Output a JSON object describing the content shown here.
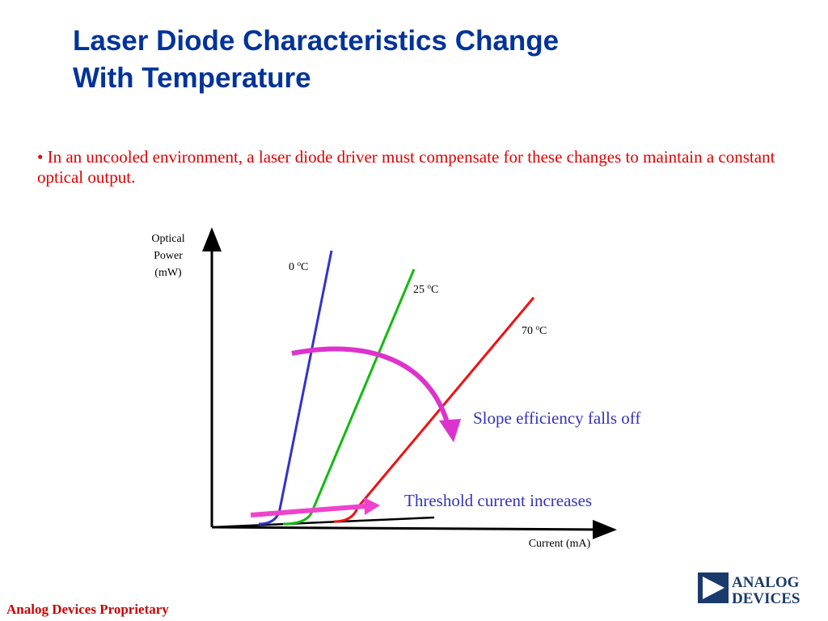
{
  "header": {
    "title": [
      "Laser Diode Characteristics Change",
      "With Temperature"
    ]
  },
  "bullet": "In an uncooled environment, a laser diode driver must compensate for these changes to maintain a constant optical output.",
  "diagram": {
    "y_axis_label": [
      "Optical",
      "Power",
      "(mW)"
    ],
    "x_axis_label": "Current (mA)",
    "curves": [
      {
        "number": "0",
        "superscript": "o",
        "unit": "C"
      },
      {
        "number": "25",
        "superscript": "o",
        "unit": "C"
      },
      {
        "number": "70",
        "superscript": "o",
        "unit": "C"
      }
    ],
    "annotations": [
      "Slope efficiency falls off",
      "Threshold current increases"
    ]
  },
  "logo": [
    "ANALOG",
    "DEVICES"
  ],
  "footer": "Analog Devices Proprietary"
}
